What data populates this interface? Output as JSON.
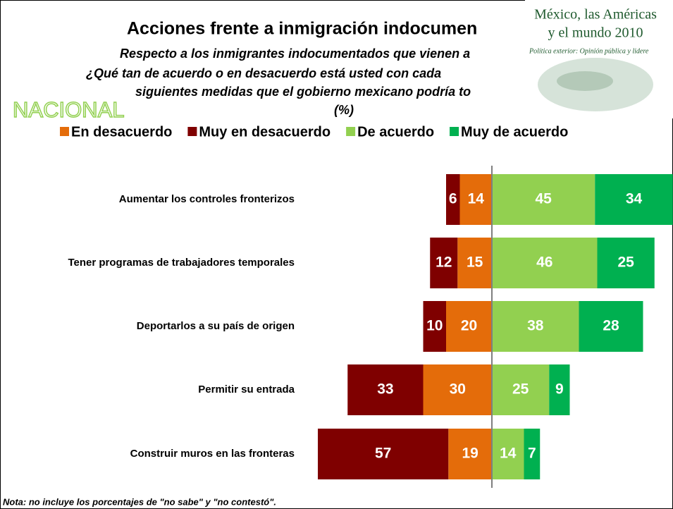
{
  "chart_data": {
    "type": "bar",
    "title": "Acciones frente a inmigración indocumen",
    "subtitle": [
      "Respecto a los inmigrantes indocumentados que vienen a",
      "¿Qué tan de acuerdo o en desacuerdo está usted con cada",
      "siguientes medidas que el gobierno mexicano podría to",
      "(%)"
    ],
    "region_label": "NACIONAL",
    "logo": [
      "México, las Américas",
      "y el mundo 2010",
      "Política exterior: Opinión pública y lidere"
    ],
    "note": "Nota: no incluye los porcentajes de \"no sabe\" y \"no contestó\".",
    "categories": [
      "Aumentar los controles fronterizos",
      "Tener programas de trabajadores temporales",
      "Deportarlos a su país de origen",
      "Permitir su entrada",
      "Construir muros en las fronteras"
    ],
    "series": [
      {
        "name": "En desacuerdo",
        "color": "#e46c0a",
        "side": "left",
        "values": [
          14,
          15,
          20,
          30,
          19
        ]
      },
      {
        "name": "Muy en desacuerdo",
        "color": "#7f0000",
        "side": "left",
        "values": [
          6,
          12,
          10,
          33,
          57
        ]
      },
      {
        "name": "De acuerdo",
        "color": "#92d050",
        "side": "right",
        "values": [
          45,
          46,
          38,
          25,
          14
        ]
      },
      {
        "name": "Muy de acuerdo",
        "color": "#00b050",
        "side": "right",
        "values": [
          34,
          25,
          28,
          9,
          7
        ]
      }
    ]
  }
}
